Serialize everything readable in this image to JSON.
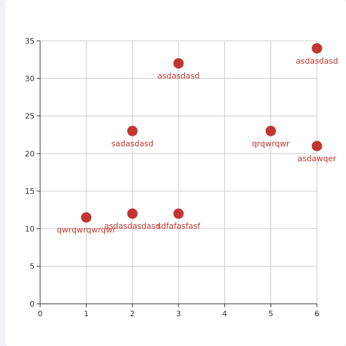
{
  "colors": {
    "point": "#c23531",
    "label": "#c23531",
    "grid": "#cccccc",
    "axis": "#333333",
    "panel": "#ffffff",
    "background": "#f2f3f7"
  },
  "chart_data": {
    "type": "scatter",
    "title": "",
    "xlabel": "",
    "ylabel": "",
    "xlim": [
      0,
      6
    ],
    "ylim": [
      0,
      35
    ],
    "xticks": [
      0,
      1,
      2,
      3,
      4,
      5,
      6
    ],
    "yticks": [
      0,
      5,
      10,
      15,
      20,
      25,
      30,
      35
    ],
    "grid": true,
    "legend": false,
    "series": [
      {
        "points": [
          {
            "x": 1,
            "y": 11.5,
            "label": "qwrqwrqwrqwr"
          },
          {
            "x": 2,
            "y": 12,
            "label": "asdasdasdasd"
          },
          {
            "x": 3,
            "y": 12,
            "label": "sdfafasfasf"
          },
          {
            "x": 2,
            "y": 23,
            "label": "sadasdasd"
          },
          {
            "x": 3,
            "y": 32,
            "label": "asdasdasd"
          },
          {
            "x": 5,
            "y": 23,
            "label": "qrqwrqwr"
          },
          {
            "x": 6,
            "y": 21,
            "label": "asdawqer"
          },
          {
            "x": 6,
            "y": 34,
            "label": "asdasdasd"
          }
        ]
      }
    ]
  }
}
